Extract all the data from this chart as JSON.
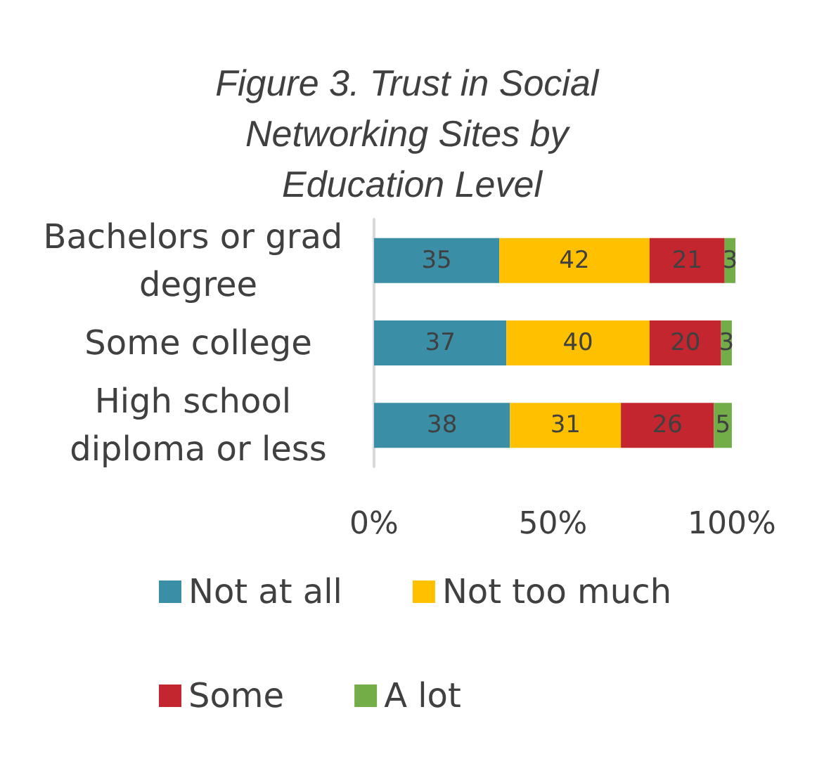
{
  "chart_data": {
    "type": "bar",
    "orientation": "horizontal",
    "stacked": true,
    "title": "Figure 3. Trust in Social Networking Sites by Education Level",
    "categories": [
      "Bachelors or grad degree",
      "Some college",
      "High school diploma or less"
    ],
    "series": [
      {
        "name": "Not at all",
        "color": "#3a8fa6",
        "values": [
          35,
          37,
          38
        ]
      },
      {
        "name": "Not too much",
        "color": "#ffc000",
        "values": [
          42,
          40,
          31
        ]
      },
      {
        "name": "Some",
        "color": "#c3262e",
        "values": [
          21,
          20,
          26
        ]
      },
      {
        "name": "A lot",
        "color": "#72ad47",
        "values": [
          3,
          3,
          5
        ]
      }
    ],
    "xlim": [
      0,
      101
    ],
    "xticks": [
      {
        "value": 0,
        "label": "0%"
      },
      {
        "value": 50,
        "label": "50%"
      },
      {
        "value": 100,
        "label": "100%"
      }
    ],
    "data_labels": true,
    "grid": false,
    "legend": "bottom"
  }
}
